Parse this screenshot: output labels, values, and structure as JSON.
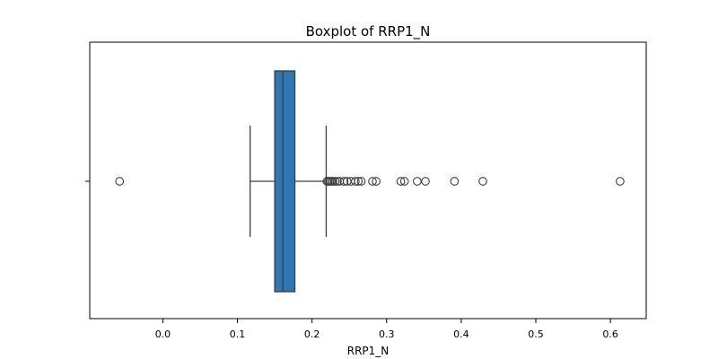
{
  "chart_data": {
    "type": "boxplot",
    "title": "Boxplot of RRP1_N",
    "xlabel": "RRP1_N",
    "ylabel": "",
    "xlim": [
      -0.098,
      0.648
    ],
    "xticks": [
      0.0,
      0.1,
      0.2,
      0.3,
      0.4,
      0.5,
      0.6
    ],
    "xtick_labels": [
      "0.0",
      "0.1",
      "0.2",
      "0.3",
      "0.4",
      "0.5",
      "0.6"
    ],
    "orientation": "horizontal",
    "grid": false,
    "box": {
      "whisker_low": 0.117,
      "q1": 0.15,
      "median": 0.161,
      "q3": 0.177,
      "whisker_high": 0.219
    },
    "outliers": [
      -0.058,
      0.22,
      0.222,
      0.224,
      0.226,
      0.228,
      0.231,
      0.234,
      0.237,
      0.243,
      0.247,
      0.252,
      0.258,
      0.262,
      0.266,
      0.281,
      0.286,
      0.319,
      0.324,
      0.341,
      0.352,
      0.391,
      0.429,
      0.613
    ],
    "colors": {
      "box_fill": "#2f77b4",
      "line": "#3d3d3d",
      "outlier_edge": "#3d3d3d"
    }
  }
}
